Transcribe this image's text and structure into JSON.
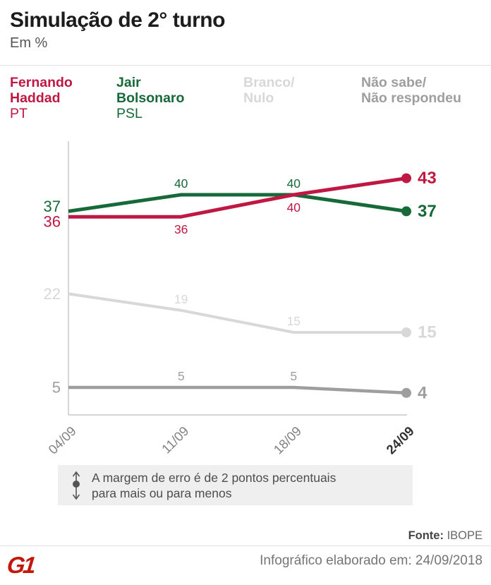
{
  "header": {
    "title": "Simulação de 2° turno",
    "subtitle": "Em %"
  },
  "legend": {
    "items": [
      {
        "name_line1": "Fernando",
        "name_line2": "Haddad",
        "party": "PT",
        "color": "#bf1843"
      },
      {
        "name_line1": "Jair",
        "name_line2": "Bolsonaro",
        "party": "PSL",
        "color": "#176939"
      },
      {
        "name_line1": "Branco/",
        "name_line2": "Nulo",
        "party": "",
        "color": "#d8d8d8"
      },
      {
        "name_line1": "Não sabe/",
        "name_line2": "Não respondeu",
        "party": "",
        "color": "#9e9e9e"
      }
    ]
  },
  "chart_data": {
    "type": "line",
    "title": "Simulação de 2° turno",
    "ylabel": "Em %",
    "x": [
      "04/09",
      "11/09",
      "18/09",
      "24/09"
    ],
    "series": [
      {
        "name": "Fernando Haddad (PT)",
        "values": [
          36,
          36,
          40,
          43
        ],
        "color": "#bf1843"
      },
      {
        "name": "Jair Bolsonaro (PSL)",
        "values": [
          37,
          40,
          40,
          37
        ],
        "color": "#176939"
      },
      {
        "name": "Branco/Nulo",
        "values": [
          22,
          19,
          15,
          15
        ],
        "color": "#d8d8d8"
      },
      {
        "name": "Não sabe/Não respondeu",
        "values": [
          5,
          5,
          5,
          4
        ],
        "color": "#9e9e9e"
      }
    ],
    "ylim": [
      0,
      47
    ],
    "grid": false,
    "legend_position": "top",
    "axis_color": "#c9c9c9"
  },
  "note": {
    "line1": "A margem de erro é de 2 pontos percentuais",
    "line2": "para mais ou para menos"
  },
  "footer": {
    "source_label": "Fonte:",
    "source_value": "IBOPE",
    "credit": "Infográfico elaborado em: 24/09/2018",
    "logo_text": "G1",
    "logo_color": "#c4170c"
  }
}
